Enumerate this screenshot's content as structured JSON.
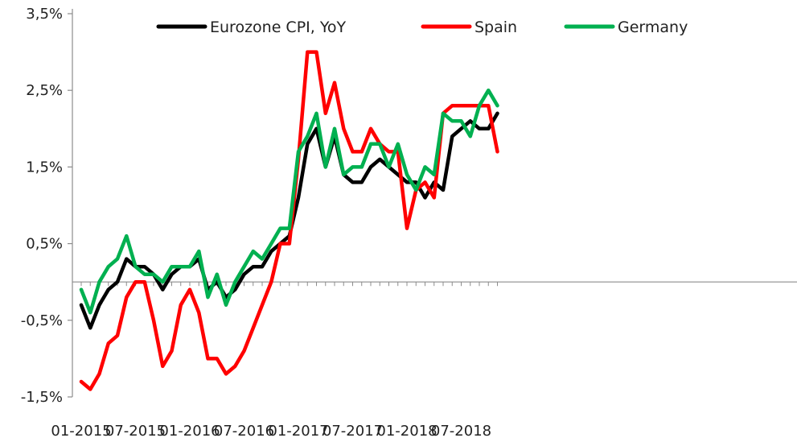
{
  "chart_data": {
    "type": "line",
    "title": "",
    "xlabel": "",
    "ylabel": "",
    "ylim": [
      -1.5,
      3.5
    ],
    "y_ticks": [
      -1.5,
      -0.5,
      0.5,
      1.5,
      2.5,
      3.5
    ],
    "y_tick_labels": [
      "-1,5%",
      "-0,5%",
      "0,5%",
      "1,5%",
      "2,5%",
      "3,5%"
    ],
    "x_start": "01-2015",
    "x_tick_labels": [
      "01-2015",
      "07-2015",
      "01-2016",
      "07-2016",
      "01-2017",
      "07-2017",
      "01-2018",
      "07-2018"
    ],
    "x_tick_months": [
      "2015-01",
      "2015-07",
      "2016-01",
      "2016-07",
      "2017-01",
      "2017-07",
      "2018-01",
      "2018-07"
    ],
    "grid": false,
    "legend_position": "top-center",
    "series": [
      {
        "name": "Eurozone CPI, YoY",
        "color": "#000000",
        "values": [
          -0.3,
          -0.6,
          -0.3,
          -0.1,
          0.0,
          0.3,
          0.2,
          0.2,
          0.1,
          -0.1,
          0.1,
          0.2,
          0.2,
          0.3,
          -0.1,
          0.0,
          -0.2,
          -0.1,
          0.1,
          0.2,
          0.2,
          0.4,
          0.5,
          0.6,
          1.1,
          1.8,
          2.0,
          1.5,
          1.9,
          1.4,
          1.3,
          1.3,
          1.5,
          1.6,
          1.5,
          1.4,
          1.3,
          1.3,
          1.1,
          1.3,
          1.2,
          1.9,
          2.0,
          2.1,
          2.0,
          2.0,
          2.2
        ]
      },
      {
        "name": "Spain",
        "color": "#ff0000",
        "values": [
          -1.3,
          -1.4,
          -1.2,
          -0.8,
          -0.7,
          -0.2,
          0.0,
          0.0,
          -0.5,
          -1.1,
          -0.9,
          -0.3,
          -0.1,
          -0.4,
          -1.0,
          -1.0,
          -1.2,
          -1.1,
          -0.9,
          -0.6,
          -0.3,
          0.0,
          0.5,
          0.5,
          1.6,
          3.0,
          3.0,
          2.2,
          2.6,
          2.0,
          1.7,
          1.7,
          2.0,
          1.8,
          1.7,
          1.7,
          0.7,
          1.2,
          1.3,
          1.1,
          2.2,
          2.3,
          2.3,
          2.3,
          2.3,
          2.3,
          1.7
        ]
      },
      {
        "name": "Germany",
        "color": "#00b050",
        "values": [
          -0.1,
          -0.4,
          0.0,
          0.2,
          0.3,
          0.6,
          0.2,
          0.1,
          0.1,
          0.0,
          0.2,
          0.2,
          0.2,
          0.4,
          -0.2,
          0.1,
          -0.3,
          0.0,
          0.2,
          0.4,
          0.3,
          0.5,
          0.7,
          0.7,
          1.7,
          1.9,
          2.2,
          1.5,
          2.0,
          1.4,
          1.5,
          1.5,
          1.8,
          1.8,
          1.5,
          1.8,
          1.4,
          1.2,
          1.5,
          1.4,
          2.2,
          2.1,
          2.1,
          1.9,
          2.3,
          2.5,
          2.3
        ]
      }
    ]
  }
}
